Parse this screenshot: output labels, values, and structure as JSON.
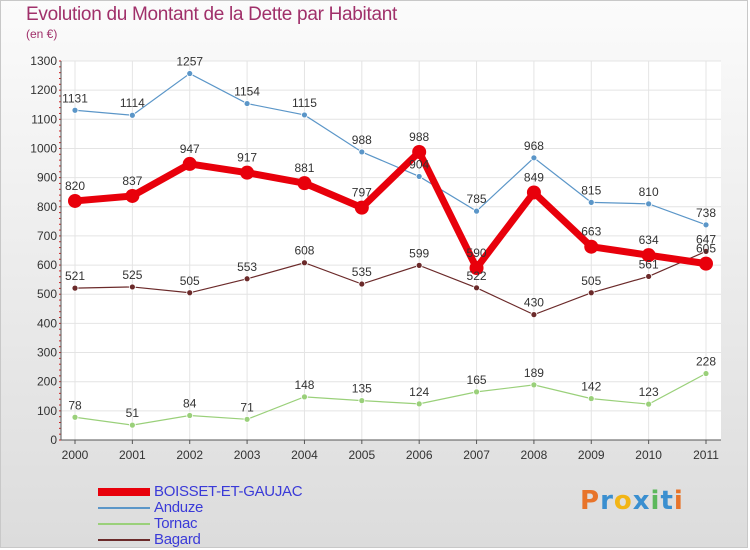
{
  "header": {
    "title": "Evolution du Montant de la Dette par Habitant",
    "subtitle": "(en €)"
  },
  "logo": {
    "text": "Proxiti",
    "letter_colors": [
      "#e8742a",
      "#3a8fd0",
      "#f2b516",
      "#3a8fd0",
      "#5cb85c",
      "#3a8fd0",
      "#e8742a"
    ]
  },
  "chart_data": {
    "type": "line",
    "title": "Evolution du Montant de la Dette par Habitant",
    "subtitle": "(en €)",
    "x": [
      2000,
      2001,
      2002,
      2003,
      2004,
      2005,
      2006,
      2007,
      2008,
      2009,
      2010,
      2011
    ],
    "ylim": [
      0,
      1300
    ],
    "yticks": [
      0,
      100,
      200,
      300,
      400,
      500,
      600,
      700,
      800,
      900,
      1000,
      1100,
      1200,
      1300
    ],
    "grid": true,
    "legend_position": "bottom-left",
    "series": [
      {
        "name": "BOISSET-ET-GAUJAC",
        "color": "#e8000b",
        "values": [
          820,
          837,
          947,
          917,
          881,
          797,
          988,
          590,
          849,
          663,
          634,
          605
        ],
        "emphasis": true
      },
      {
        "name": "Anduze",
        "color": "#5b96c8",
        "values": [
          1131,
          1114,
          1257,
          1154,
          1115,
          988,
          904,
          785,
          968,
          815,
          810,
          738
        ]
      },
      {
        "name": "Tornac",
        "color": "#9ad07a",
        "values": [
          78,
          51,
          84,
          71,
          148,
          135,
          124,
          165,
          189,
          142,
          123,
          228
        ]
      },
      {
        "name": "Bagard",
        "color": "#6b2a2a",
        "values": [
          521,
          525,
          505,
          553,
          608,
          535,
          599,
          522,
          430,
          505,
          561,
          647
        ]
      }
    ]
  }
}
